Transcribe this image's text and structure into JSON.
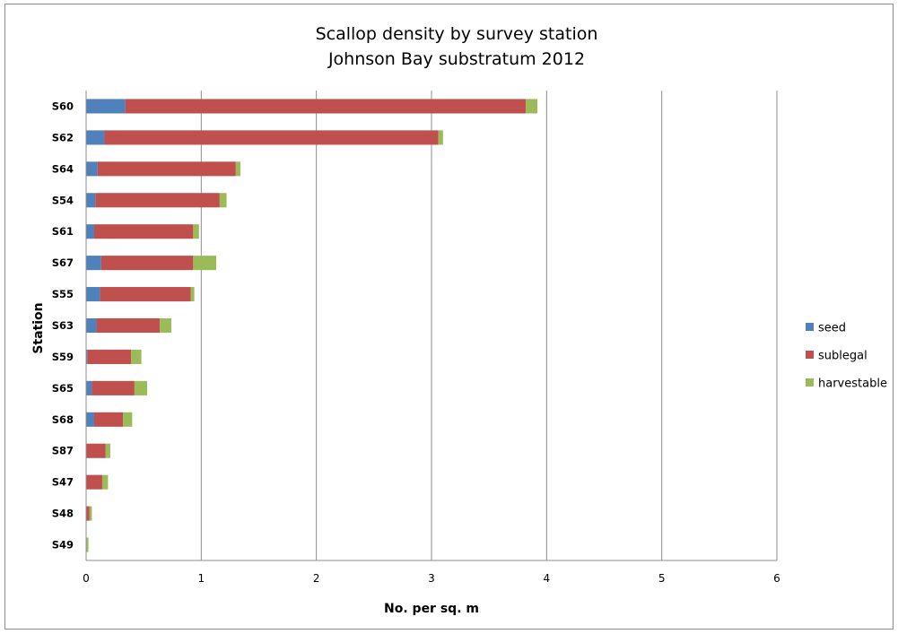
{
  "chart_data": {
    "type": "bar",
    "orientation": "horizontal",
    "stacked": true,
    "title": "Scallop density by survey station",
    "subtitle": "Johnson Bay substratum 2012",
    "xlabel": "No. per sq. m",
    "ylabel": "Station",
    "xlim": [
      0,
      6
    ],
    "xticks": [
      "0",
      "1",
      "2",
      "3",
      "4",
      "5",
      "6"
    ],
    "grid": true,
    "legend_position": "right",
    "categories": [
      "S60",
      "S62",
      "S64",
      "S54",
      "S61",
      "S67",
      "S55",
      "S63",
      "S59",
      "S65",
      "S68",
      "S87",
      "S47",
      "S48",
      "S49"
    ],
    "series": [
      {
        "name": "seed",
        "color": "#4f81bd",
        "values": [
          0.34,
          0.16,
          0.1,
          0.08,
          0.07,
          0.13,
          0.12,
          0.09,
          0.01,
          0.05,
          0.07,
          0.0,
          0.0,
          0.0,
          0.0
        ]
      },
      {
        "name": "sublegal",
        "color": "#c0504d",
        "values": [
          3.48,
          2.9,
          1.2,
          1.08,
          0.86,
          0.8,
          0.79,
          0.55,
          0.38,
          0.37,
          0.25,
          0.17,
          0.14,
          0.03,
          0.0
        ]
      },
      {
        "name": "harvestable",
        "color": "#9bbb59",
        "values": [
          0.1,
          0.04,
          0.04,
          0.06,
          0.05,
          0.2,
          0.03,
          0.1,
          0.09,
          0.11,
          0.08,
          0.04,
          0.05,
          0.02,
          0.02
        ]
      }
    ]
  }
}
